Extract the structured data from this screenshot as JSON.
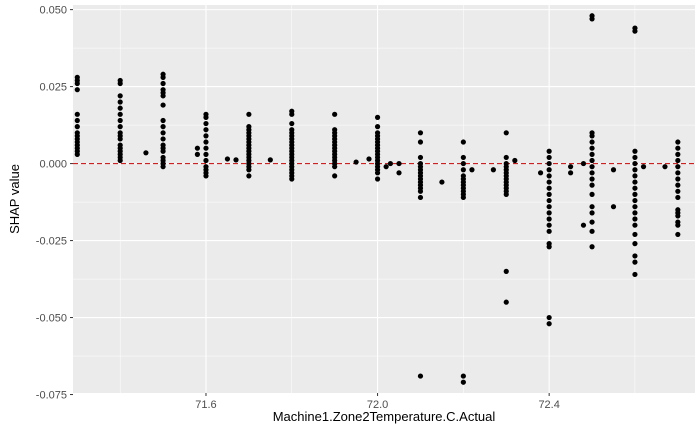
{
  "chart_data": {
    "type": "scatter",
    "xlabel": "Machine1.Zone2Temperature.C.Actual",
    "ylabel": "SHAP value",
    "xlim": [
      71.29,
      72.74
    ],
    "ylim": [
      -0.0745,
      0.0515
    ],
    "x_ticks": [
      71.6,
      72.0,
      72.4
    ],
    "x_tick_labels": [
      "71.6",
      "72.0",
      "72.4"
    ],
    "y_ticks": [
      -0.075,
      -0.05,
      -0.025,
      0.0,
      0.025,
      0.05
    ],
    "y_tick_labels": [
      "-0.075",
      "-0.050",
      "-0.025",
      "0.000",
      "0.025",
      "0.050"
    ],
    "reference_line": {
      "y": 0.0,
      "style": "dashed",
      "color": "#cc0000"
    },
    "grid": true,
    "colors": {
      "panel": "#ebebeb",
      "grid_major": "#ffffff",
      "point": "#000000"
    },
    "series": [
      {
        "points": [
          [
            71.3,
            0.028
          ],
          [
            71.3,
            0.027
          ],
          [
            71.3,
            0.026
          ],
          [
            71.3,
            0.024
          ],
          [
            71.3,
            0.016
          ],
          [
            71.3,
            0.014
          ],
          [
            71.3,
            0.012
          ],
          [
            71.3,
            0.01
          ],
          [
            71.3,
            0.009
          ],
          [
            71.3,
            0.008
          ],
          [
            71.3,
            0.007
          ],
          [
            71.3,
            0.006
          ],
          [
            71.3,
            0.005
          ],
          [
            71.3,
            0.004
          ],
          [
            71.3,
            0.003
          ],
          [
            71.4,
            0.027
          ],
          [
            71.4,
            0.026
          ],
          [
            71.4,
            0.022
          ],
          [
            71.4,
            0.02
          ],
          [
            71.4,
            0.018
          ],
          [
            71.4,
            0.016
          ],
          [
            71.4,
            0.014
          ],
          [
            71.4,
            0.012
          ],
          [
            71.4,
            0.01
          ],
          [
            71.4,
            0.009
          ],
          [
            71.4,
            0.008
          ],
          [
            71.4,
            0.006
          ],
          [
            71.4,
            0.005
          ],
          [
            71.4,
            0.004
          ],
          [
            71.4,
            0.003
          ],
          [
            71.4,
            0.002
          ],
          [
            71.4,
            0.001
          ],
          [
            71.46,
            0.0035
          ],
          [
            71.5,
            0.029
          ],
          [
            71.5,
            0.028
          ],
          [
            71.5,
            0.026
          ],
          [
            71.5,
            0.024
          ],
          [
            71.5,
            0.023
          ],
          [
            71.5,
            0.022
          ],
          [
            71.5,
            0.019
          ],
          [
            71.5,
            0.014
          ],
          [
            71.5,
            0.012
          ],
          [
            71.5,
            0.01
          ],
          [
            71.5,
            0.008
          ],
          [
            71.5,
            0.006
          ],
          [
            71.5,
            0.005
          ],
          [
            71.5,
            0.004
          ],
          [
            71.5,
            0.002
          ],
          [
            71.5,
            0.001
          ],
          [
            71.5,
            0.0
          ],
          [
            71.5,
            -0.001
          ],
          [
            71.58,
            0.005
          ],
          [
            71.58,
            0.003
          ],
          [
            71.6,
            0.016
          ],
          [
            71.6,
            0.015
          ],
          [
            71.6,
            0.013
          ],
          [
            71.6,
            0.011
          ],
          [
            71.6,
            0.009
          ],
          [
            71.6,
            0.007
          ],
          [
            71.6,
            0.005
          ],
          [
            71.6,
            0.003
          ],
          [
            71.6,
            0.001
          ],
          [
            71.6,
            -0.001
          ],
          [
            71.6,
            -0.002
          ],
          [
            71.6,
            -0.003
          ],
          [
            71.6,
            -0.004
          ],
          [
            71.65,
            0.0015
          ],
          [
            71.67,
            0.0012
          ],
          [
            71.7,
            0.016
          ],
          [
            71.7,
            0.012
          ],
          [
            71.7,
            0.011
          ],
          [
            71.7,
            0.01
          ],
          [
            71.7,
            0.009
          ],
          [
            71.7,
            0.008
          ],
          [
            71.7,
            0.007
          ],
          [
            71.7,
            0.006
          ],
          [
            71.7,
            0.005
          ],
          [
            71.7,
            0.004
          ],
          [
            71.7,
            0.003
          ],
          [
            71.7,
            0.002
          ],
          [
            71.7,
            0.001
          ],
          [
            71.7,
            0.0
          ],
          [
            71.7,
            -0.001
          ],
          [
            71.7,
            -0.002
          ],
          [
            71.7,
            -0.004
          ],
          [
            71.75,
            0.0012
          ],
          [
            71.8,
            0.017
          ],
          [
            71.8,
            0.016
          ],
          [
            71.8,
            0.013
          ],
          [
            71.8,
            0.011
          ],
          [
            71.8,
            0.01
          ],
          [
            71.8,
            0.009
          ],
          [
            71.8,
            0.008
          ],
          [
            71.8,
            0.007
          ],
          [
            71.8,
            0.006
          ],
          [
            71.8,
            0.005
          ],
          [
            71.8,
            0.004
          ],
          [
            71.8,
            0.003
          ],
          [
            71.8,
            0.002
          ],
          [
            71.8,
            0.001
          ],
          [
            71.8,
            0.0
          ],
          [
            71.8,
            -0.001
          ],
          [
            71.8,
            -0.002
          ],
          [
            71.8,
            -0.003
          ],
          [
            71.8,
            -0.004
          ],
          [
            71.8,
            -0.005
          ],
          [
            71.9,
            0.016
          ],
          [
            71.9,
            0.011
          ],
          [
            71.9,
            0.01
          ],
          [
            71.9,
            0.009
          ],
          [
            71.9,
            0.008
          ],
          [
            71.9,
            0.007
          ],
          [
            71.9,
            0.006
          ],
          [
            71.9,
            0.005
          ],
          [
            71.9,
            0.004
          ],
          [
            71.9,
            0.003
          ],
          [
            71.9,
            0.002
          ],
          [
            71.9,
            0.001
          ],
          [
            71.9,
            0.0
          ],
          [
            71.9,
            -0.001
          ],
          [
            71.9,
            -0.004
          ],
          [
            71.95,
            0.0005
          ],
          [
            71.98,
            0.0015
          ],
          [
            72.0,
            0.015
          ],
          [
            72.0,
            0.012
          ],
          [
            72.0,
            0.01
          ],
          [
            72.0,
            0.009
          ],
          [
            72.0,
            0.008
          ],
          [
            72.0,
            0.007
          ],
          [
            72.0,
            0.006
          ],
          [
            72.0,
            0.005
          ],
          [
            72.0,
            0.004
          ],
          [
            72.0,
            0.003
          ],
          [
            72.0,
            0.002
          ],
          [
            72.0,
            0.001
          ],
          [
            72.0,
            0.0
          ],
          [
            72.0,
            -0.001
          ],
          [
            72.0,
            -0.002
          ],
          [
            72.0,
            -0.003
          ],
          [
            72.0,
            -0.005
          ],
          [
            72.02,
            -0.001
          ],
          [
            72.03,
            0.0
          ],
          [
            72.05,
            -0.003
          ],
          [
            72.05,
            0.0
          ],
          [
            72.1,
            0.01
          ],
          [
            72.1,
            0.007
          ],
          [
            72.1,
            0.002
          ],
          [
            72.1,
            0.0
          ],
          [
            72.1,
            -0.001
          ],
          [
            72.1,
            -0.002
          ],
          [
            72.1,
            -0.003
          ],
          [
            72.1,
            -0.004
          ],
          [
            72.1,
            -0.005
          ],
          [
            72.1,
            -0.006
          ],
          [
            72.1,
            -0.007
          ],
          [
            72.1,
            -0.008
          ],
          [
            72.1,
            -0.009
          ],
          [
            72.1,
            -0.011
          ],
          [
            72.1,
            -0.069
          ],
          [
            72.15,
            -0.006
          ],
          [
            72.2,
            0.007
          ],
          [
            72.2,
            0.002
          ],
          [
            72.2,
            0.0
          ],
          [
            72.2,
            -0.002
          ],
          [
            72.2,
            -0.004
          ],
          [
            72.2,
            -0.005
          ],
          [
            72.2,
            -0.006
          ],
          [
            72.2,
            -0.007
          ],
          [
            72.2,
            -0.008
          ],
          [
            72.2,
            -0.009
          ],
          [
            72.2,
            -0.01
          ],
          [
            72.2,
            -0.011
          ],
          [
            72.2,
            -0.069
          ],
          [
            72.2,
            -0.071
          ],
          [
            72.22,
            -0.002
          ],
          [
            72.27,
            -0.002
          ],
          [
            72.3,
            0.01
          ],
          [
            72.3,
            0.002
          ],
          [
            72.3,
            0.0
          ],
          [
            72.3,
            -0.001
          ],
          [
            72.3,
            -0.002
          ],
          [
            72.3,
            -0.003
          ],
          [
            72.3,
            -0.004
          ],
          [
            72.3,
            -0.005
          ],
          [
            72.3,
            -0.006
          ],
          [
            72.3,
            -0.007
          ],
          [
            72.3,
            -0.008
          ],
          [
            72.3,
            -0.009
          ],
          [
            72.3,
            -0.01
          ],
          [
            72.3,
            -0.035
          ],
          [
            72.3,
            -0.045
          ],
          [
            72.32,
            0.001
          ],
          [
            72.38,
            -0.003
          ],
          [
            72.4,
            0.004
          ],
          [
            72.4,
            0.002
          ],
          [
            72.4,
            0.0
          ],
          [
            72.4,
            -0.002
          ],
          [
            72.4,
            -0.004
          ],
          [
            72.4,
            -0.006
          ],
          [
            72.4,
            -0.008
          ],
          [
            72.4,
            -0.01
          ],
          [
            72.4,
            -0.012
          ],
          [
            72.4,
            -0.014
          ],
          [
            72.4,
            -0.016
          ],
          [
            72.4,
            -0.018
          ],
          [
            72.4,
            -0.02
          ],
          [
            72.4,
            -0.022
          ],
          [
            72.4,
            -0.026
          ],
          [
            72.4,
            -0.027
          ],
          [
            72.4,
            -0.05
          ],
          [
            72.4,
            -0.052
          ],
          [
            72.45,
            -0.001
          ],
          [
            72.45,
            -0.003
          ],
          [
            72.48,
            -0.02
          ],
          [
            72.48,
            0.0
          ],
          [
            72.5,
            0.048
          ],
          [
            72.5,
            0.047
          ],
          [
            72.5,
            0.01
          ],
          [
            72.5,
            0.009
          ],
          [
            72.5,
            0.007
          ],
          [
            72.5,
            0.005
          ],
          [
            72.5,
            0.003
          ],
          [
            72.5,
            0.001
          ],
          [
            72.5,
            -0.001
          ],
          [
            72.5,
            -0.003
          ],
          [
            72.5,
            -0.005
          ],
          [
            72.5,
            -0.007
          ],
          [
            72.5,
            -0.01
          ],
          [
            72.5,
            -0.014
          ],
          [
            72.5,
            -0.016
          ],
          [
            72.5,
            -0.019
          ],
          [
            72.5,
            -0.022
          ],
          [
            72.5,
            -0.027
          ],
          [
            72.55,
            -0.002
          ],
          [
            72.55,
            -0.014
          ],
          [
            72.6,
            0.044
          ],
          [
            72.6,
            0.043
          ],
          [
            72.6,
            0.004
          ],
          [
            72.6,
            0.002
          ],
          [
            72.6,
            0.0
          ],
          [
            72.6,
            -0.002
          ],
          [
            72.6,
            -0.004
          ],
          [
            72.6,
            -0.006
          ],
          [
            72.6,
            -0.008
          ],
          [
            72.6,
            -0.01
          ],
          [
            72.6,
            -0.012
          ],
          [
            72.6,
            -0.014
          ],
          [
            72.6,
            -0.016
          ],
          [
            72.6,
            -0.018
          ],
          [
            72.6,
            -0.02
          ],
          [
            72.6,
            -0.023
          ],
          [
            72.6,
            -0.026
          ],
          [
            72.6,
            -0.03
          ],
          [
            72.6,
            -0.032
          ],
          [
            72.6,
            -0.036
          ],
          [
            72.62,
            -0.001
          ],
          [
            72.67,
            -0.001
          ],
          [
            72.7,
            0.007
          ],
          [
            72.7,
            0.005
          ],
          [
            72.7,
            0.003
          ],
          [
            72.7,
            0.001
          ],
          [
            72.7,
            -0.001
          ],
          [
            72.7,
            -0.003
          ],
          [
            72.7,
            -0.005
          ],
          [
            72.7,
            -0.007
          ],
          [
            72.7,
            -0.009
          ],
          [
            72.7,
            -0.011
          ],
          [
            72.7,
            -0.015
          ],
          [
            72.7,
            -0.016
          ],
          [
            72.7,
            -0.017
          ],
          [
            72.7,
            -0.019
          ],
          [
            72.7,
            -0.02
          ],
          [
            72.7,
            -0.023
          ]
        ]
      }
    ]
  }
}
